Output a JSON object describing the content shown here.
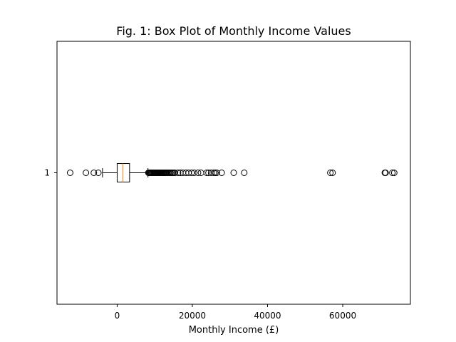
{
  "chart_data": {
    "type": "boxplot",
    "title": "Fig. 1: Box Plot of Monthly Income Values",
    "xlabel": "Monthly Income (£)",
    "ylabel": "",
    "orientation": "horizontal",
    "xlim": [
      -16000,
      78000
    ],
    "x_ticks": [
      0,
      20000,
      40000,
      60000
    ],
    "y_ticks": [
      "1"
    ],
    "grid": false,
    "series": [
      {
        "category": "1",
        "whisker_low": -3900,
        "q1": 0,
        "median": 1500,
        "q3": 3300,
        "whisker_high": 8200,
        "outliers_low": [
          -12500,
          -8300,
          -6200,
          -5000
        ],
        "outliers_high": [
          8300,
          8500,
          8700,
          8900,
          9100,
          9300,
          9500,
          9700,
          9900,
          10100,
          10300,
          10500,
          10700,
          10900,
          11100,
          11300,
          11500,
          11700,
          11900,
          12100,
          12300,
          12500,
          12700,
          12900,
          13100,
          13300,
          13600,
          13900,
          14200,
          14500,
          14800,
          15100,
          15400,
          16200,
          16800,
          17500,
          18300,
          19000,
          19800,
          20500,
          21500,
          22300,
          23800,
          24300,
          25000,
          25700,
          26100,
          26500,
          27800,
          31000,
          33800,
          56700,
          57300,
          71200,
          71400,
          73200,
          73700
        ]
      }
    ],
    "colors": {
      "box": "#000000",
      "median": "#ff7f0e",
      "outlier": "#000000"
    }
  }
}
